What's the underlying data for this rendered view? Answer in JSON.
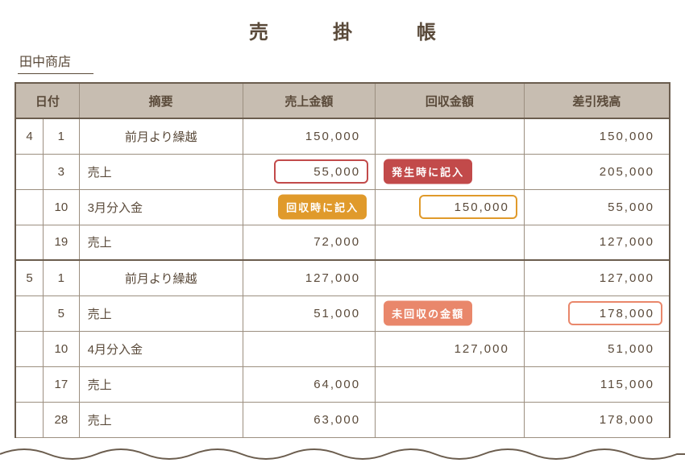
{
  "title": "売　掛　帳",
  "customer": "田中商店",
  "colors": {
    "text": "#5a4a3a",
    "border": "#9c8f80",
    "border_heavy": "#6b5d4e",
    "header_bg": "#c7bdb1",
    "red": "#c24a4a",
    "orange": "#e09a2b",
    "salmon": "#e9876b"
  },
  "headers": {
    "date": "日付",
    "desc": "摘要",
    "sales": "売上金額",
    "collection": "回収金額",
    "balance": "差引残高"
  },
  "callouts": {
    "on_sale": "発生時に記入",
    "on_collect": "回収時に記入",
    "uncollected": "未回収の金額"
  },
  "rows": [
    {
      "month": "4",
      "day": "1",
      "desc": "前月より繰越",
      "desc_center": true,
      "sales": "150,000",
      "collection": "",
      "balance": "150,000",
      "section_top": false
    },
    {
      "month": "",
      "day": "3",
      "desc": "売上",
      "desc_center": false,
      "sales": "55,000",
      "collection": "",
      "balance": "205,000",
      "sales_outline": "red",
      "collection_pill": "on_sale",
      "pill_color": "red"
    },
    {
      "month": "",
      "day": "10",
      "desc": "3月分入金",
      "desc_center": false,
      "sales": "",
      "collection": "150,000",
      "balance": "55,000",
      "collection_outline": "orange",
      "sales_pill": "on_collect",
      "pill_color": "orange"
    },
    {
      "month": "",
      "day": "19",
      "desc": "売上",
      "desc_center": false,
      "sales": "72,000",
      "collection": "",
      "balance": "127,000"
    },
    {
      "month": "5",
      "day": "1",
      "desc": "前月より繰越",
      "desc_center": true,
      "sales": "127,000",
      "collection": "",
      "balance": "127,000",
      "section_top": true
    },
    {
      "month": "",
      "day": "5",
      "desc": "売上",
      "desc_center": false,
      "sales": "51,000",
      "collection": "",
      "balance": "178,000",
      "balance_outline": "salmon",
      "collection_pill": "uncollected",
      "pill_color": "salmon"
    },
    {
      "month": "",
      "day": "10",
      "desc": "4月分入金",
      "desc_center": false,
      "sales": "",
      "collection": "127,000",
      "balance": "51,000"
    },
    {
      "month": "",
      "day": "17",
      "desc": "売上",
      "desc_center": false,
      "sales": "64,000",
      "collection": "",
      "balance": "115,000"
    },
    {
      "month": "",
      "day": "28",
      "desc": "売上",
      "desc_center": false,
      "sales": "63,000",
      "collection": "",
      "balance": "178,000"
    }
  ]
}
